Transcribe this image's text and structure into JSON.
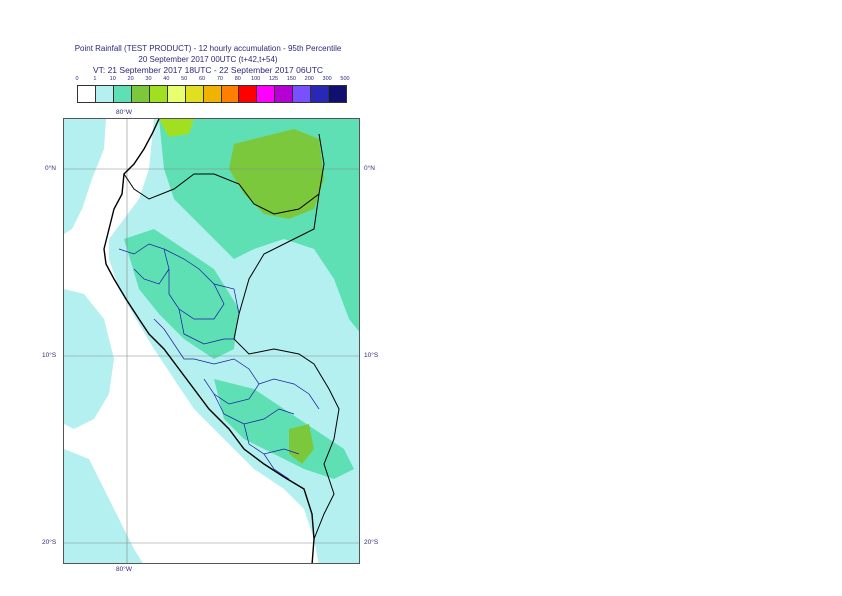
{
  "title": {
    "line1": "Point Rainfall (TEST PRODUCT) - 12 hourly accumulation - 95th Percentile",
    "line2": "20 September 2017 00UTC (t+42,t+54)",
    "line3": "VT: 21 September 2017 18UTC - 22 September 2017 06UTC"
  },
  "legend": {
    "thresholds": [
      "0",
      "1",
      "10",
      "20",
      "30",
      "40",
      "50",
      "60",
      "70",
      "80",
      "100",
      "125",
      "150",
      "200",
      "300",
      "500"
    ],
    "colors": [
      "#ffffff",
      "#b4f0f0",
      "#5fe0b4",
      "#7cc83c",
      "#a0e020",
      "#e8ff70",
      "#e0e020",
      "#f0b400",
      "#ff8000",
      "#ff0000",
      "#ff00ff",
      "#b400d2",
      "#7850ff",
      "#2828b4",
      "#101070"
    ]
  },
  "map": {
    "lon_labels": {
      "top": "80°W",
      "bottom": "80°W"
    },
    "lat_labels": {
      "north": "0°N",
      "ten_south": "10°S",
      "twenty_south": "20°S"
    },
    "colors": {
      "ocean": "#ffffff",
      "light_rain": "#b4f0f0",
      "moderate_rain": "#5fe0b4",
      "heavy_rain": "#7cc83c",
      "very_heavy": "#a0e020",
      "coast": "#000000",
      "regions": "#1a1aa0"
    }
  }
}
